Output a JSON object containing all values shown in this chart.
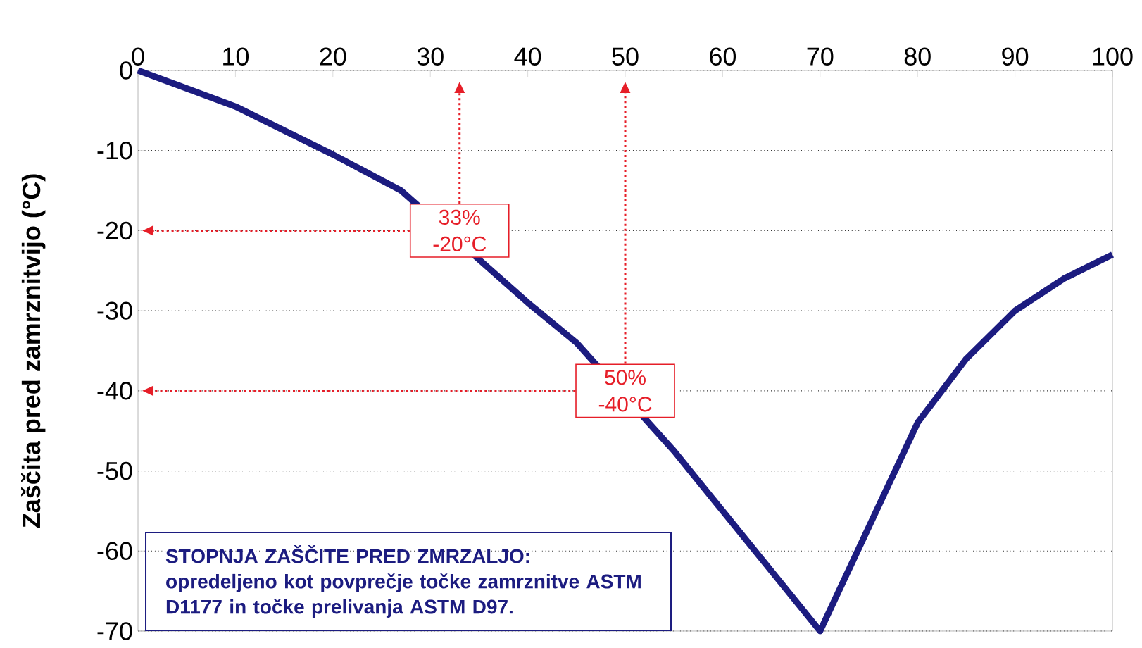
{
  "chart_data": {
    "type": "line",
    "ylabel": "Zaščita pred zamrznitvijo (°C)",
    "x": [
      0,
      10,
      20,
      27,
      40,
      45,
      55,
      60,
      70,
      80,
      85,
      90,
      95,
      100
    ],
    "series": [
      {
        "color": "#1c1c80",
        "values": [
          0,
          -4.5,
          -10.5,
          -15,
          -29,
          -34,
          -47.5,
          -55,
          -70,
          -44,
          -36,
          -30,
          -26,
          -23
        ]
      }
    ],
    "xlim": [
      0,
      100
    ],
    "xticks": [
      0,
      10,
      20,
      30,
      40,
      50,
      60,
      70,
      80,
      90,
      100
    ],
    "ylim": [
      -70,
      0
    ],
    "yticks": [
      -70,
      -60,
      -50,
      -40,
      -30,
      -20,
      -10,
      0
    ],
    "grid": "y",
    "marker": "none",
    "line_style": "solid",
    "annotations": [
      {
        "text": "33% -20°C",
        "x": 33,
        "y": -20
      },
      {
        "text": "50% -40°C",
        "x": 50,
        "y": -40
      },
      "STOPNJA ZAŠČITE PRED ZMRZALJO:",
      "opredeljeno kot povprečje točke zamrznitve ASTM D1177 in točke prelivanja ASTM D97."
    ]
  }
}
